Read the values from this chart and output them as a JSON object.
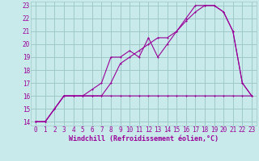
{
  "background_color": "#c8eaea",
  "grid_color": "#a0c8c8",
  "line_color": "#990099",
  "xlim": [
    -0.5,
    23.5
  ],
  "ylim": [
    13.7,
    23.3
  ],
  "xticks": [
    0,
    1,
    2,
    3,
    4,
    5,
    6,
    7,
    8,
    9,
    10,
    11,
    12,
    13,
    14,
    15,
    16,
    17,
    18,
    19,
    20,
    21,
    22,
    23
  ],
  "yticks": [
    14,
    15,
    16,
    17,
    18,
    19,
    20,
    21,
    22,
    23
  ],
  "xlabel": "Windchill (Refroidissement éolien,°C)",
  "line1_x": [
    0,
    1,
    2,
    3,
    4,
    5,
    6,
    7,
    8,
    9,
    10,
    11,
    12,
    13,
    14,
    15,
    16,
    17,
    18,
    19,
    20,
    21,
    22,
    23
  ],
  "line1_y": [
    14,
    14,
    15,
    16,
    16,
    16,
    16,
    16,
    16,
    16,
    16,
    16,
    16,
    16,
    16,
    16,
    16,
    16,
    16,
    16,
    16,
    16,
    16,
    16
  ],
  "line2_x": [
    0,
    1,
    2,
    3,
    4,
    5,
    6,
    7,
    8,
    9,
    10,
    11,
    12,
    13,
    14,
    15,
    16,
    17,
    18,
    19,
    20,
    21,
    22,
    23
  ],
  "line2_y": [
    14,
    14,
    15,
    16,
    16,
    16,
    16.5,
    17,
    19,
    19,
    19.5,
    19,
    20.5,
    19,
    20,
    21,
    22,
    23,
    23,
    23,
    22.5,
    21,
    17,
    16
  ],
  "line3_x": [
    0,
    1,
    2,
    3,
    4,
    5,
    6,
    7,
    8,
    9,
    10,
    11,
    12,
    13,
    14,
    15,
    16,
    17,
    18,
    19,
    20,
    21,
    22,
    23
  ],
  "line3_y": [
    14,
    14,
    15,
    16,
    16,
    16,
    16,
    16,
    17,
    18.5,
    19,
    19.5,
    20,
    20.5,
    20.5,
    21,
    21.8,
    22.5,
    23,
    23,
    22.5,
    21,
    17,
    16
  ],
  "tick_fontsize": 5.5,
  "xlabel_fontsize": 6,
  "linewidth": 0.8,
  "markersize": 2.0
}
